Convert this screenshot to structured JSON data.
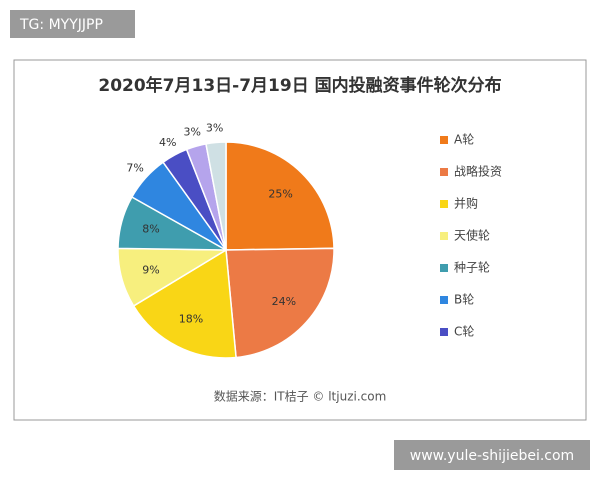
{
  "overlay": {
    "tag": "TG: MYYJJPP",
    "site": "www.yule-shijiebei.com"
  },
  "chart_data": {
    "type": "pie",
    "title": "2020年7月13日-7月19日 国内投融资事件轮次分布",
    "source": "数据来源：IT桔子 © ltjuzi.com",
    "categories": [
      "A轮",
      "战略投资",
      "并购",
      "天使轮",
      "种子轮",
      "B轮",
      "C轮",
      null,
      null
    ],
    "values": [
      25,
      24,
      18,
      9,
      8,
      7,
      4,
      3,
      3
    ],
    "value_labels": [
      "25%",
      "24%",
      "18%",
      "9%",
      "8%",
      "7%",
      "4%",
      "3%",
      "3%"
    ],
    "colors": [
      "#f07a1a",
      "#ec7a45",
      "#f9d616",
      "#f7ef7e",
      "#3f9dae",
      "#2f86e0",
      "#4a4ec4",
      "#b5a4ec",
      "#cfe0e4"
    ],
    "legend": "right"
  }
}
